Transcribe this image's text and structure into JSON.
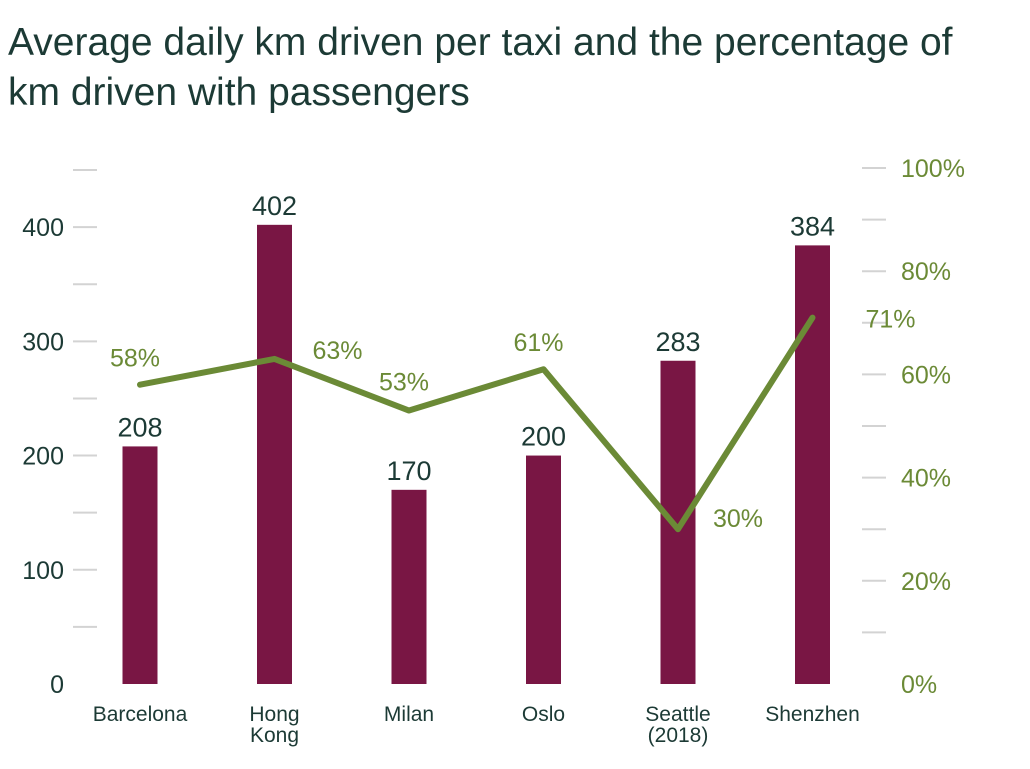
{
  "title": "Average daily km driven per taxi and the percentage of km driven with passengers",
  "colors": {
    "bar": "#791644",
    "line": "#6b8a36",
    "text": "#1c3a35",
    "tick": "#d3d3d3"
  },
  "chart_data": {
    "type": "bar",
    "title": "Average daily km driven per taxi and the percentage of km driven with passengers",
    "categories": [
      [
        "Barcelona"
      ],
      [
        "Hong",
        "Kong"
      ],
      [
        "Milan"
      ],
      [
        "Oslo"
      ],
      [
        "Seattle",
        "(2018)"
      ],
      [
        "Shenzhen"
      ]
    ],
    "series": [
      {
        "type": "bar",
        "axis": "left",
        "values": [
          208,
          402,
          170,
          200,
          283,
          384
        ],
        "labels": [
          "208",
          "402",
          "170",
          "200",
          "283",
          "384"
        ]
      },
      {
        "type": "line",
        "axis": "right",
        "values": [
          58,
          63,
          53,
          61,
          30,
          71
        ],
        "labels": [
          "58%",
          "63%",
          "53%",
          "61%",
          "30%",
          "71%"
        ]
      }
    ],
    "y_left": {
      "range": [
        0,
        450
      ],
      "ticks": [
        0,
        100,
        200,
        300,
        400
      ],
      "tick_labels": [
        "0",
        "100",
        "200",
        "300",
        "400"
      ],
      "minor_ticks": [
        50,
        150,
        250,
        350,
        450
      ]
    },
    "y_right": {
      "range": [
        0,
        100
      ],
      "ticks": [
        0,
        20,
        40,
        60,
        80,
        100
      ],
      "tick_labels": [
        "0%",
        "20%",
        "40%",
        "60%",
        "80%",
        "100%"
      ],
      "minor_ticks": [
        10,
        30,
        50,
        70,
        90
      ]
    },
    "grid": false,
    "legend": "none"
  }
}
